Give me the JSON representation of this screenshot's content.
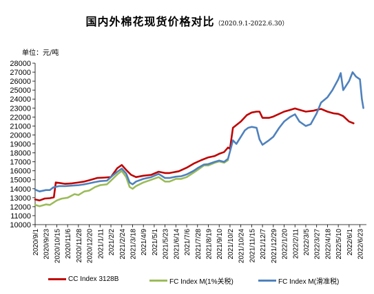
{
  "header": {
    "title": "国内外棉花现货价格对比",
    "subtitle": "（2020.9.1-2022.6.30）",
    "unit": "单位：元/吨"
  },
  "colors": {
    "cc_index": "#c00000",
    "fc_index_1pct": "#9bbb59",
    "fc_index_sliding": "#4f81bd",
    "axis": "#000000"
  },
  "chart_data": {
    "type": "line",
    "title": "国内外棉花现货价格对比",
    "xlabel": "",
    "ylabel": "单位：元/吨",
    "ylim": [
      10000,
      28000
    ],
    "yticks": [
      "10000",
      "11000",
      "12000",
      "13000",
      "14000",
      "15000",
      "16000",
      "17000",
      "18000",
      "19000",
      "20000",
      "21000",
      "22000",
      "23000",
      "24000",
      "25000",
      "26000",
      "27000",
      "28000"
    ],
    "grid": false,
    "legend_position": "bottom",
    "x_tick_labels": [
      "2020/9/1",
      "2020/9/23",
      "2020/10/15",
      "2020/11/6",
      "2020/11/28",
      "2020/12/20",
      "2021/1/11",
      "2021/2/2",
      "2021/2/24",
      "2021/3/18",
      "2021/4/9",
      "2021/5/1",
      "2021/5/23",
      "2021/6/14",
      "2021/7/6",
      "2021/7/28",
      "2021/8/19",
      "2021/9/10",
      "2021/10/2",
      "2021/10/24",
      "2021/11/15",
      "2021/12/7",
      "2021/12/29",
      "2022/1/20",
      "2022/2/11",
      "2022/3/5",
      "2022/3/27",
      "2022/4/18",
      "2022/5/10",
      "2022/6/1",
      "2022/6/23"
    ],
    "series": [
      {
        "name": "CC Index 3128B",
        "points": [
          [
            "2020/9/1",
            12800
          ],
          [
            "2020/9/10",
            12700
          ],
          [
            "2020/9/20",
            12900
          ],
          [
            "2020/10/1",
            12950
          ],
          [
            "2020/10/9",
            13050
          ],
          [
            "2020/10/13",
            14700
          ],
          [
            "2020/10/20",
            14650
          ],
          [
            "2020/11/1",
            14550
          ],
          [
            "2020/11/15",
            14600
          ],
          [
            "2020/11/28",
            14700
          ],
          [
            "2020/12/10",
            14800
          ],
          [
            "2020/12/20",
            14950
          ],
          [
            "2021/1/5",
            15200
          ],
          [
            "2021/1/20",
            15250
          ],
          [
            "2021/2/2",
            15300
          ],
          [
            "2021/2/15",
            16300
          ],
          [
            "2021/2/24",
            16650
          ],
          [
            "2021/3/5",
            16100
          ],
          [
            "2021/3/15",
            15550
          ],
          [
            "2021/3/25",
            15300
          ],
          [
            "2021/4/9",
            15450
          ],
          [
            "2021/4/25",
            15550
          ],
          [
            "2021/5/10",
            15900
          ],
          [
            "2021/5/23",
            15750
          ],
          [
            "2021/6/1",
            15750
          ],
          [
            "2021/6/20",
            15950
          ],
          [
            "2021/7/6",
            16350
          ],
          [
            "2021/7/20",
            16800
          ],
          [
            "2021/8/5",
            17200
          ],
          [
            "2021/8/19",
            17500
          ],
          [
            "2021/9/1",
            17650
          ],
          [
            "2021/9/10",
            17900
          ],
          [
            "2021/9/20",
            18100
          ],
          [
            "2021/9/28",
            18600
          ],
          [
            "2021/10/2",
            18450
          ],
          [
            "2021/10/8",
            20800
          ],
          [
            "2021/10/24",
            21500
          ],
          [
            "2021/11/5",
            22200
          ],
          [
            "2021/11/15",
            22500
          ],
          [
            "2021/11/25",
            22600
          ],
          [
            "2021/12/1",
            22600
          ],
          [
            "2021/12/7",
            21900
          ],
          [
            "2021/12/20",
            21900
          ],
          [
            "2021/12/29",
            22050
          ],
          [
            "2022/1/20",
            22600
          ],
          [
            "2022/1/30",
            22750
          ],
          [
            "2022/2/11",
            22950
          ],
          [
            "2022/2/20",
            22800
          ],
          [
            "2022/3/5",
            22600
          ],
          [
            "2022/3/20",
            22700
          ],
          [
            "2022/3/27",
            22800
          ],
          [
            "2022/4/5",
            22900
          ],
          [
            "2022/4/18",
            22600
          ],
          [
            "2022/5/1",
            22400
          ],
          [
            "2022/5/10",
            22350
          ],
          [
            "2022/5/20",
            22100
          ],
          [
            "2022/6/1",
            21500
          ],
          [
            "2022/6/10",
            21300
          ]
        ]
      },
      {
        "name": "FC Index M(1%关税)",
        "points": [
          [
            "2020/9/1",
            12200
          ],
          [
            "2020/9/10",
            12050
          ],
          [
            "2020/9/23",
            12250
          ],
          [
            "2020/10/1",
            12200
          ],
          [
            "2020/10/15",
            12700
          ],
          [
            "2020/10/25",
            12900
          ],
          [
            "2020/11/6",
            13000
          ],
          [
            "2020/11/20",
            13400
          ],
          [
            "2020/11/28",
            13300
          ],
          [
            "2020/12/10",
            13700
          ],
          [
            "2020/12/20",
            13800
          ],
          [
            "2021/1/1",
            14200
          ],
          [
            "2021/1/11",
            14400
          ],
          [
            "2021/1/25",
            14500
          ],
          [
            "2021/2/2",
            14900
          ],
          [
            "2021/2/15",
            15600
          ],
          [
            "2021/2/24",
            16000
          ],
          [
            "2021/3/5",
            15300
          ],
          [
            "2021/3/12",
            14200
          ],
          [
            "2021/3/18",
            14000
          ],
          [
            "2021/3/25",
            14300
          ],
          [
            "2021/4/9",
            14700
          ],
          [
            "2021/4/25",
            15000
          ],
          [
            "2021/5/10",
            15300
          ],
          [
            "2021/5/23",
            14800
          ],
          [
            "2021/6/1",
            14800
          ],
          [
            "2021/6/14",
            15100
          ],
          [
            "2021/6/25",
            15100
          ],
          [
            "2021/7/6",
            15300
          ],
          [
            "2021/7/20",
            15800
          ],
          [
            "2021/7/28",
            16100
          ],
          [
            "2021/8/10",
            16600
          ],
          [
            "2021/8/19",
            16600
          ],
          [
            "2021/9/1",
            16900
          ],
          [
            "2021/9/10",
            17050
          ],
          [
            "2021/9/20",
            16900
          ],
          [
            "2021/9/28",
            17200
          ]
        ]
      },
      {
        "name": "FC Index M(滑准税)",
        "points": [
          [
            "2020/9/1",
            13900
          ],
          [
            "2020/9/10",
            13700
          ],
          [
            "2020/9/23",
            13850
          ],
          [
            "2020/10/1",
            13850
          ],
          [
            "2020/10/8",
            14150
          ],
          [
            "2020/10/20",
            14300
          ],
          [
            "2020/11/1",
            14300
          ],
          [
            "2020/11/15",
            14350
          ],
          [
            "2020/11/28",
            14400
          ],
          [
            "2020/12/10",
            14500
          ],
          [
            "2020/12/20",
            14600
          ],
          [
            "2021/1/1",
            14750
          ],
          [
            "2021/1/11",
            14850
          ],
          [
            "2021/1/25",
            14900
          ],
          [
            "2021/2/2",
            15300
          ],
          [
            "2021/2/15",
            15900
          ],
          [
            "2021/2/24",
            16250
          ],
          [
            "2021/3/5",
            15700
          ],
          [
            "2021/3/12",
            14700
          ],
          [
            "2021/3/18",
            14500
          ],
          [
            "2021/3/25",
            14800
          ],
          [
            "2021/4/9",
            15100
          ],
          [
            "2021/4/25",
            15300
          ],
          [
            "2021/5/10",
            15650
          ],
          [
            "2021/5/23",
            15200
          ],
          [
            "2021/6/1",
            15200
          ],
          [
            "2021/6/14",
            15350
          ],
          [
            "2021/6/25",
            15400
          ],
          [
            "2021/7/6",
            15600
          ],
          [
            "2021/7/20",
            16000
          ],
          [
            "2021/7/28",
            16300
          ],
          [
            "2021/8/10",
            16700
          ],
          [
            "2021/8/19",
            16750
          ],
          [
            "2021/9/1",
            17000
          ],
          [
            "2021/9/10",
            17150
          ],
          [
            "2021/9/20",
            17000
          ],
          [
            "2021/9/28",
            17350
          ],
          [
            "2021/10/8",
            19400
          ],
          [
            "2021/10/15",
            19000
          ],
          [
            "2021/10/24",
            19800
          ],
          [
            "2021/11/1",
            20500
          ],
          [
            "2021/11/8",
            20800
          ],
          [
            "2021/11/15",
            20900
          ],
          [
            "2021/11/25",
            20800
          ],
          [
            "2021/12/1",
            19500
          ],
          [
            "2021/12/7",
            18900
          ],
          [
            "2021/12/20",
            19400
          ],
          [
            "2021/12/29",
            19800
          ],
          [
            "2022/1/10",
            20800
          ],
          [
            "2022/1/20",
            21500
          ],
          [
            "2022/2/1",
            22000
          ],
          [
            "2022/2/11",
            22300
          ],
          [
            "2022/2/20",
            21500
          ],
          [
            "2022/3/5",
            21000
          ],
          [
            "2022/3/15",
            21200
          ],
          [
            "2022/3/27",
            22400
          ],
          [
            "2022/4/5",
            23600
          ],
          [
            "2022/4/18",
            24200
          ],
          [
            "2022/4/28",
            25000
          ],
          [
            "2022/5/10",
            26200
          ],
          [
            "2022/5/15",
            26900
          ],
          [
            "2022/5/20",
            25000
          ],
          [
            "2022/6/1",
            26000
          ],
          [
            "2022/6/8",
            27000
          ],
          [
            "2022/6/15",
            26500
          ],
          [
            "2022/6/23",
            26200
          ],
          [
            "2022/6/27",
            24000
          ],
          [
            "2022/6/30",
            23000
          ]
        ]
      }
    ]
  }
}
